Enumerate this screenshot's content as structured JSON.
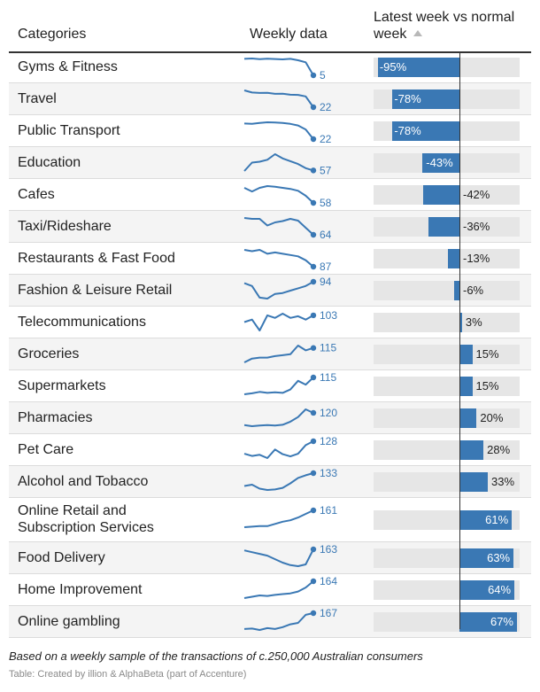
{
  "header": {
    "categories_label": "Categories",
    "weekly_label": "Weekly data",
    "latest_label": "Latest week vs normal week"
  },
  "chart_data": {
    "type": "table",
    "columns": [
      "Categories",
      "Weekly data",
      "Latest week vs normal week"
    ],
    "bar_range": [
      -100,
      70
    ],
    "rows": [
      {
        "category": "Gyms & Fitness",
        "latest_index": 5,
        "pct": -95,
        "pct_label": "-95%",
        "spark": [
          100,
          102,
          98,
          101,
          99,
          97,
          100,
          92,
          80,
          5
        ]
      },
      {
        "category": "Travel",
        "latest_index": 22,
        "pct": -78,
        "pct_label": "-78%",
        "spark": [
          100,
          90,
          88,
          89,
          84,
          85,
          80,
          79,
          72,
          22
        ]
      },
      {
        "category": "Public Transport",
        "latest_index": 22,
        "pct": -78,
        "pct_label": "-78%",
        "spark": [
          100,
          98,
          103,
          106,
          105,
          103,
          98,
          90,
          70,
          22
        ]
      },
      {
        "category": "Education",
        "latest_index": 57,
        "pct": -43,
        "pct_label": "-43%",
        "spark": [
          55,
          85,
          88,
          95,
          115,
          100,
          90,
          80,
          65,
          57
        ]
      },
      {
        "category": "Cafes",
        "latest_index": 58,
        "pct": -42,
        "pct_label": "-42%",
        "spark": [
          100,
          90,
          100,
          105,
          103,
          100,
          97,
          92,
          78,
          58
        ]
      },
      {
        "category": "Taxi/Rideshare",
        "latest_index": 64,
        "pct": -36,
        "pct_label": "-36%",
        "spark": [
          102,
          100,
          100,
          85,
          92,
          95,
          100,
          96,
          80,
          64
        ]
      },
      {
        "category": "Restaurants & Fast Food",
        "latest_index": 87,
        "pct": -13,
        "pct_label": "-13%",
        "spark": [
          100,
          99,
          100,
          97,
          98,
          97,
          96,
          95,
          92,
          87
        ]
      },
      {
        "category": "Fashion & Leisure Retail",
        "latest_index": 94,
        "pct": -6,
        "pct_label": "-6%",
        "spark": [
          91,
          85,
          60,
          58,
          68,
          70,
          75,
          80,
          85,
          94
        ]
      },
      {
        "category": "Telecommunications",
        "latest_index": 103,
        "pct": 3,
        "pct_label": "3%",
        "spark": [
          95,
          98,
          85,
          103,
          100,
          105,
          100,
          102,
          98,
          103
        ]
      },
      {
        "category": "Groceries",
        "latest_index": 115,
        "pct": 15,
        "pct_label": "15%",
        "spark": [
          85,
          93,
          95,
          95,
          98,
          100,
          102,
          120,
          110,
          115
        ]
      },
      {
        "category": "Supermarkets",
        "latest_index": 115,
        "pct": 15,
        "pct_label": "15%",
        "spark": [
          80,
          82,
          85,
          83,
          84,
          83,
          90,
          108,
          100,
          115
        ]
      },
      {
        "category": "Pharmacies",
        "latest_index": 120,
        "pct": 20,
        "pct_label": "20%",
        "spark": [
          85,
          82,
          84,
          85,
          84,
          86,
          95,
          108,
          130,
          120
        ]
      },
      {
        "category": "Pet Care",
        "latest_index": 128,
        "pct": 28,
        "pct_label": "28%",
        "spark": [
          70,
          60,
          65,
          50,
          90,
          68,
          58,
          70,
          110,
          128
        ]
      },
      {
        "category": "Alcohol and Tobacco",
        "latest_index": 133,
        "pct": 33,
        "pct_label": "33%",
        "spark": [
          85,
          90,
          75,
          70,
          72,
          78,
          95,
          115,
          125,
          133
        ]
      },
      {
        "category": "Online Retail and Subscription Services",
        "latest_index": 161,
        "pct": 61,
        "pct_label": "61%",
        "spark": [
          100,
          102,
          104,
          104,
          112,
          120,
          125,
          135,
          148,
          161
        ]
      },
      {
        "category": "Food Delivery",
        "latest_index": 163,
        "pct": 63,
        "pct_label": "63%",
        "spark": [
          160,
          155,
          150,
          145,
          135,
          125,
          118,
          115,
          120,
          163
        ]
      },
      {
        "category": "Home Improvement",
        "latest_index": 164,
        "pct": 64,
        "pct_label": "64%",
        "spark": [
          100,
          105,
          110,
          108,
          112,
          115,
          118,
          125,
          140,
          164
        ]
      },
      {
        "category": "Online gambling",
        "latest_index": 167,
        "pct": 67,
        "pct_label": "67%",
        "spark": [
          100,
          102,
          96,
          104,
          100,
          108,
          120,
          126,
          160,
          167
        ]
      }
    ]
  },
  "footnote": "Based on a weekly sample of the transactions of c.250,000 Australian consumers",
  "source": "Table: Created by illion & AlphaBeta (part of Accenture)",
  "colors": {
    "bar": "#3a78b4",
    "track": "#e6e6e6",
    "alt_row": "#f4f4f4"
  }
}
